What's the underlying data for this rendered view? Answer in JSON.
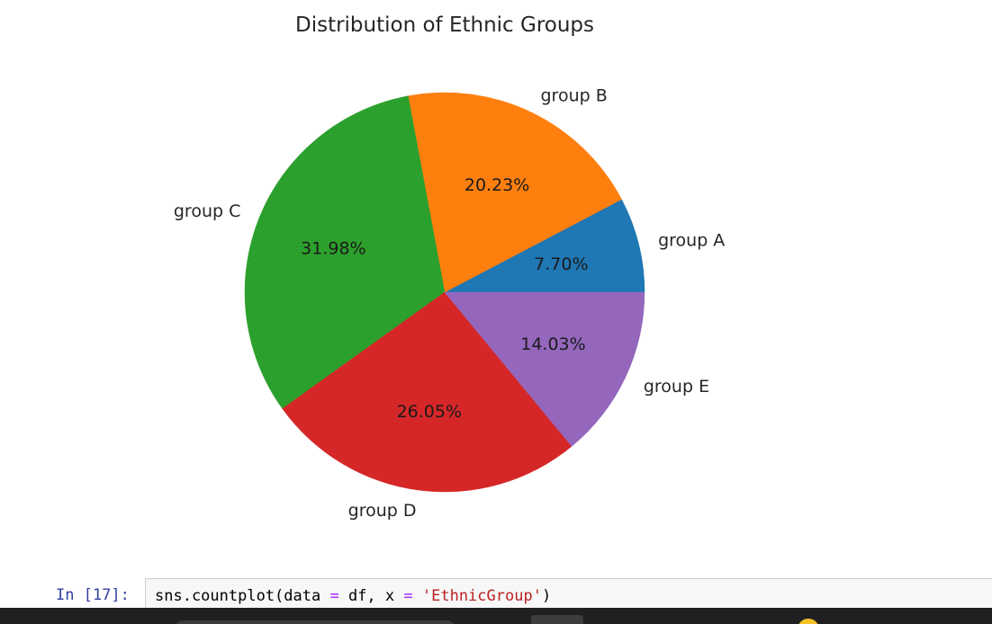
{
  "chart_data": {
    "type": "pie",
    "title": "Distribution of Ethnic Groups",
    "labels": [
      "group A",
      "group B",
      "group C",
      "group D",
      "group E"
    ],
    "values": [
      7.7,
      20.23,
      31.98,
      26.05,
      14.03
    ],
    "pct_labels": [
      "7.70%",
      "20.23%",
      "31.98%",
      "26.05%",
      "14.03%"
    ],
    "colors": [
      "#1f77b4",
      "#ff7f0e",
      "#2ca02c",
      "#d62728",
      "#9467bd"
    ],
    "start_angle_deg": 0,
    "direction": "counterclockwise",
    "legend": "none"
  },
  "cell": {
    "prompt": "In [17]:",
    "code_parts": {
      "p1": "sns.countplot(data ",
      "op1": "=",
      "p2": " df, x ",
      "op2": "=",
      "p3": " ",
      "str": "'EthnicGroup'",
      "p4": ")"
    }
  },
  "taskbar": {
    "icons": [
      "search-bar",
      "app-icon",
      "notification-icon"
    ]
  }
}
